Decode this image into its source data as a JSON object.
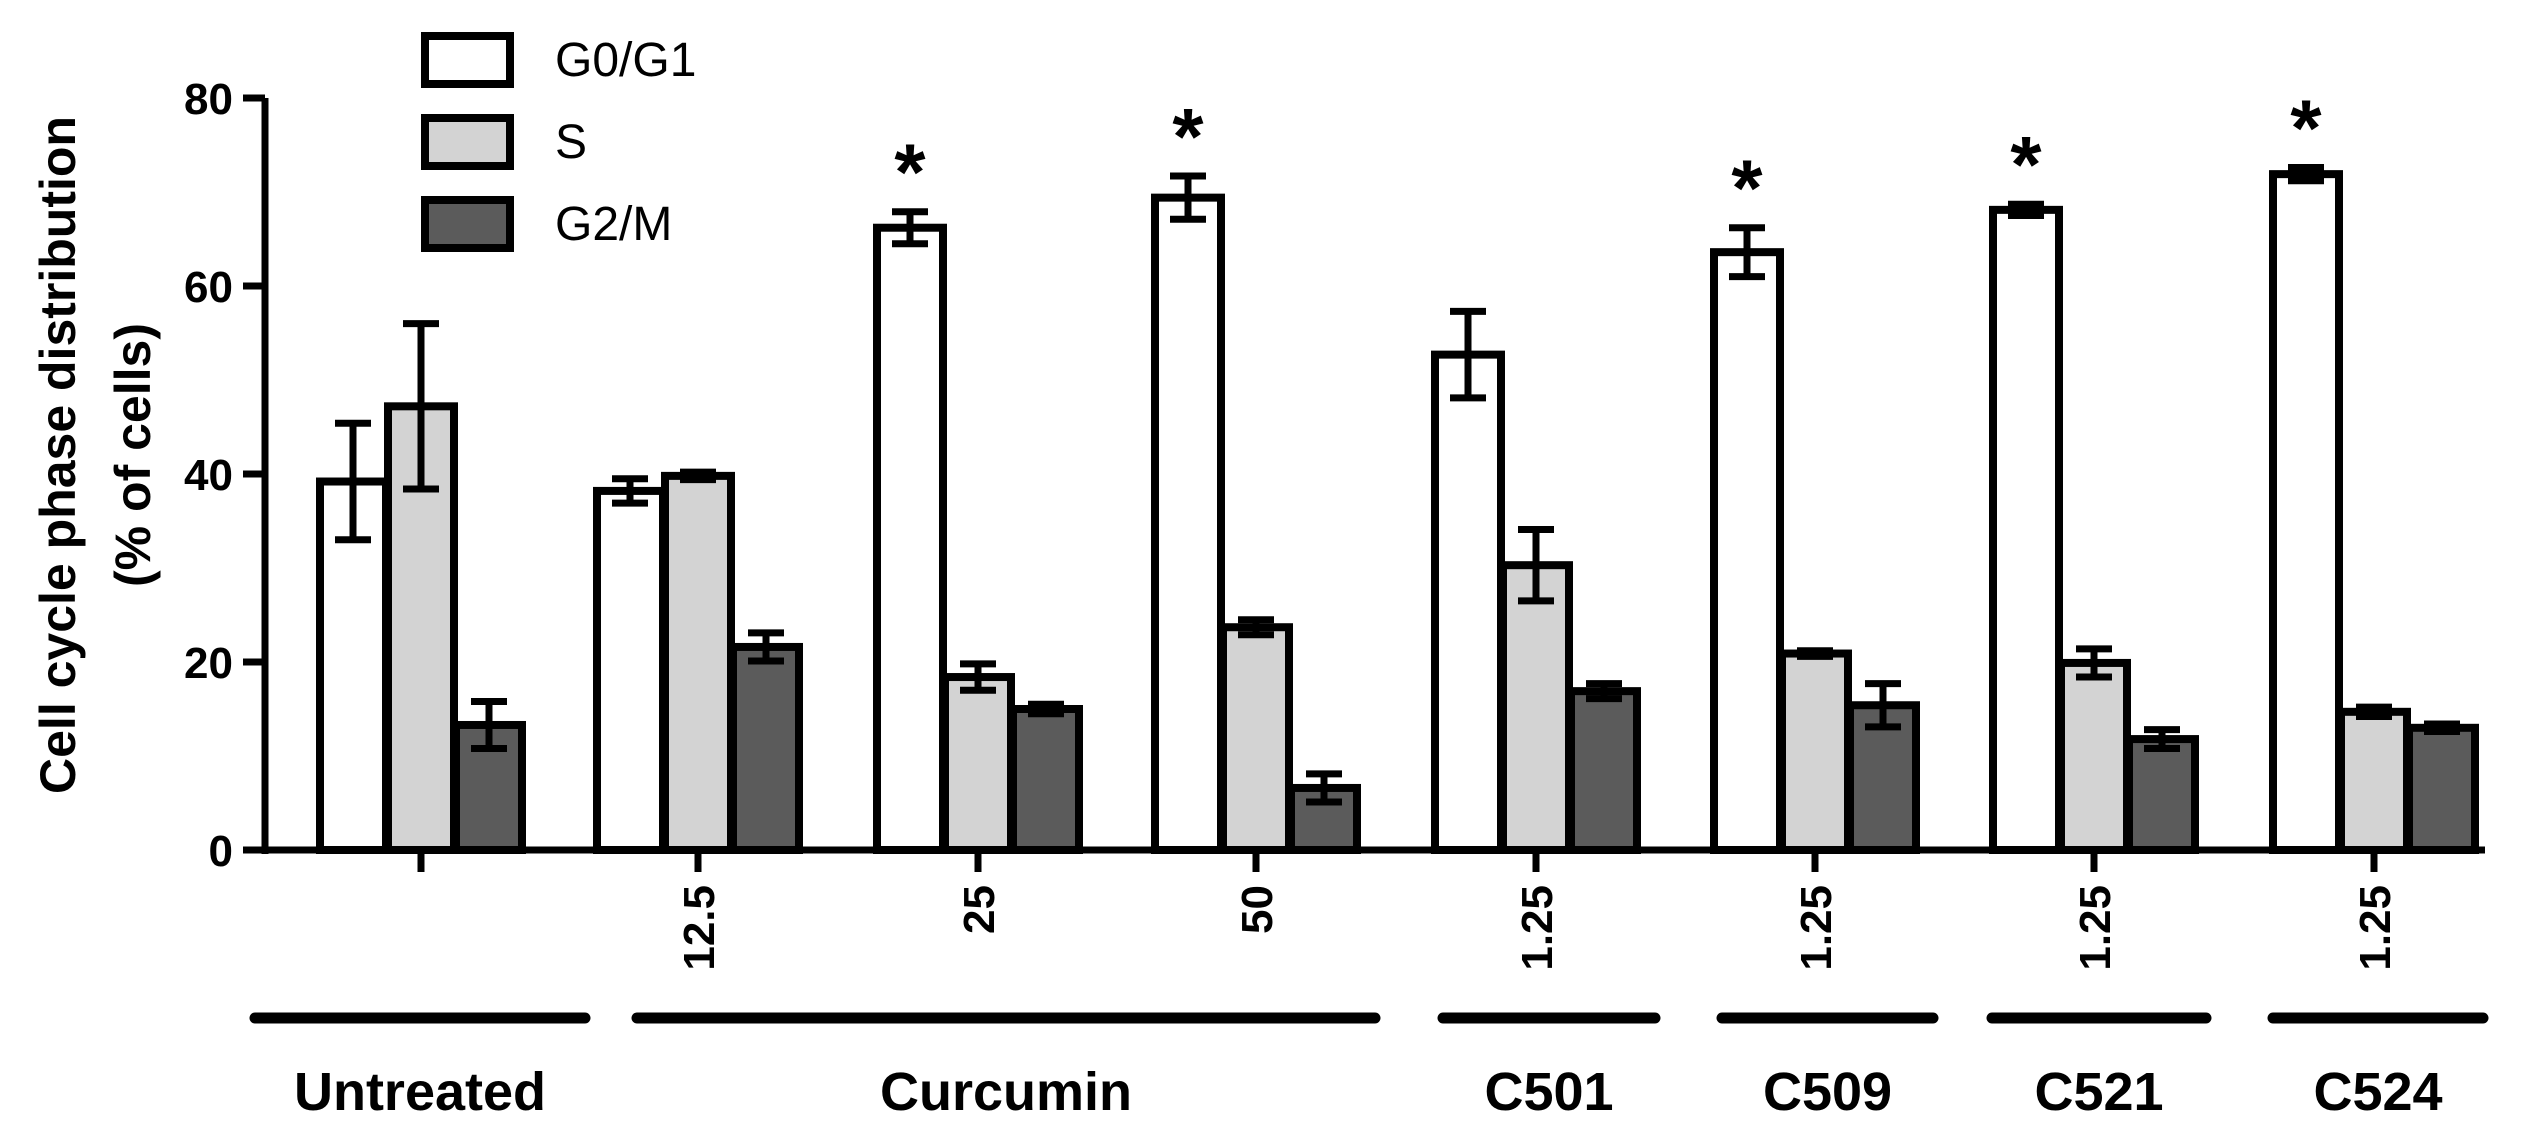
{
  "chart_data": {
    "type": "bar",
    "ylabel_line1": "Cell cycle phase distribution",
    "ylabel_line2": "(% of cells)",
    "ylim": [
      0,
      80
    ],
    "yticks": [
      0,
      20,
      40,
      60,
      80
    ],
    "categories": [
      "",
      "12.5",
      "25",
      "50",
      "1.25",
      "1.25",
      "1.25",
      "1.25"
    ],
    "groups": [
      {
        "label": "Untreated",
        "span": [
          0,
          0
        ]
      },
      {
        "label": "Curcumin",
        "span": [
          1,
          3
        ]
      },
      {
        "label": "C501",
        "span": [
          4,
          4
        ]
      },
      {
        "label": "C509",
        "span": [
          5,
          5
        ]
      },
      {
        "label": "C521",
        "span": [
          6,
          6
        ]
      },
      {
        "label": "C524",
        "span": [
          7,
          7
        ]
      }
    ],
    "series": [
      {
        "name": "G0/G1",
        "color": "#ffffff",
        "values": [
          39.2,
          38.2,
          66.2,
          69.4,
          52.7,
          63.6,
          68.1,
          71.9
        ],
        "errors": [
          6.2,
          1.3,
          1.7,
          2.3,
          4.6,
          2.6,
          0.6,
          0.7
        ]
      },
      {
        "name": "S",
        "color": "#d3d3d3",
        "values": [
          47.2,
          39.8,
          18.4,
          23.7,
          30.3,
          20.9,
          19.9,
          14.7
        ],
        "errors": [
          8.8,
          0.4,
          1.4,
          0.8,
          3.8,
          0.3,
          1.5,
          0.5
        ]
      },
      {
        "name": "G2/M",
        "color": "#5b5b5b",
        "values": [
          13.3,
          21.6,
          15.0,
          6.6,
          16.9,
          15.4,
          11.8,
          13.0
        ],
        "errors": [
          2.5,
          1.5,
          0.5,
          1.5,
          0.8,
          2.3,
          1.0,
          0.4
        ]
      }
    ],
    "significance_marker": "*",
    "significant": [
      false,
      false,
      true,
      true,
      false,
      true,
      true,
      true
    ],
    "legend_position": "top-left",
    "grid": false
  }
}
